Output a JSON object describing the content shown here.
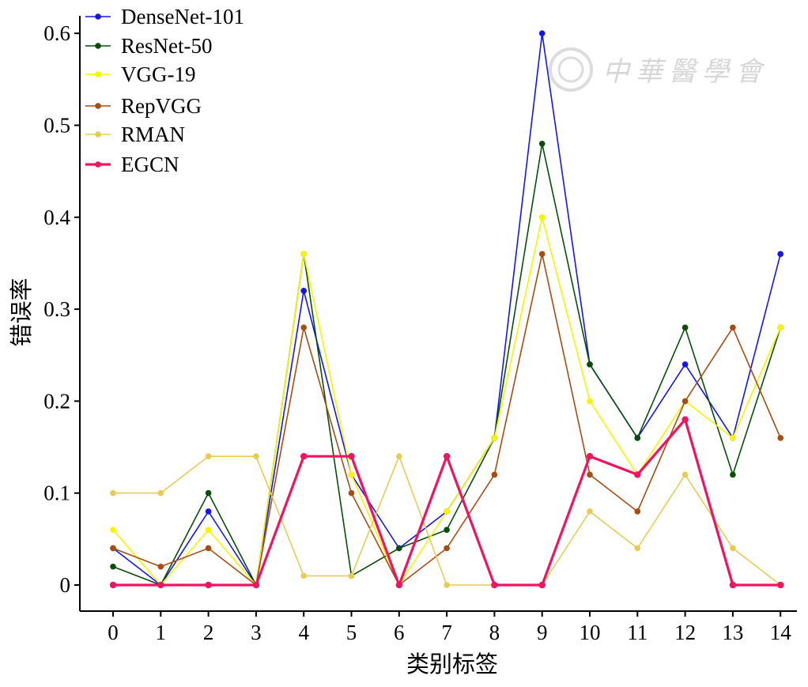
{
  "chart_data": {
    "type": "line",
    "xlabel": "类别标签",
    "ylabel": "错误率",
    "x": [
      0,
      1,
      2,
      3,
      4,
      5,
      6,
      7,
      8,
      9,
      10,
      11,
      12,
      13,
      14
    ],
    "xlim": [
      0,
      14
    ],
    "ylim": [
      0,
      0.6
    ],
    "y_ticks": [
      "0",
      "0.1",
      "0.2",
      "0.3",
      "0.4",
      "0.5",
      "0.6"
    ],
    "x_ticks": [
      "0",
      "1",
      "2",
      "3",
      "4",
      "5",
      "6",
      "7",
      "8",
      "9",
      "10",
      "11",
      "12",
      "13",
      "14"
    ],
    "grid": false,
    "legend_position": "top-left",
    "series": [
      {
        "name": "DenseNet-101",
        "color": "#1515e8",
        "values": [
          0.04,
          0,
          0.08,
          0,
          0.32,
          0.12,
          0.04,
          0.08,
          0.16,
          0.6,
          0.24,
          0.16,
          0.24,
          0.16,
          0.36
        ]
      },
      {
        "name": "ResNet-50",
        "color": "#0a4d0a",
        "values": [
          0.02,
          0,
          0.1,
          0,
          0.36,
          0.01,
          0.04,
          0.06,
          0.16,
          0.48,
          0.24,
          0.16,
          0.28,
          0.12,
          0.28
        ]
      },
      {
        "name": "VGG-19",
        "color": "#f5f500",
        "values": [
          0.06,
          0,
          0.06,
          0,
          0.36,
          0.12,
          0,
          0.08,
          0.16,
          0.4,
          0.2,
          0.12,
          0.2,
          0.16,
          0.28
        ]
      },
      {
        "name": "RepVGG",
        "color": "#a64d12",
        "values": [
          0.04,
          0.02,
          0.04,
          0,
          0.28,
          0.1,
          0,
          0.04,
          0.12,
          0.36,
          0.12,
          0.08,
          0.2,
          0.28,
          0.16
        ]
      },
      {
        "name": "RMAN",
        "color": "#e6cc55",
        "values": [
          0.1,
          0.1,
          0.14,
          0.14,
          0.01,
          0.01,
          0.14,
          0,
          0,
          0,
          0.08,
          0.04,
          0.12,
          0.04,
          0
        ]
      },
      {
        "name": "EGCN",
        "color": "#f0135f",
        "values": [
          0,
          0,
          0,
          0,
          0.14,
          0.14,
          0,
          0.14,
          0,
          0,
          0.14,
          0.12,
          0.18,
          0,
          0
        ]
      }
    ]
  },
  "watermark": {
    "text": "中華醫學會",
    "icon": "society-seal-icon"
  }
}
